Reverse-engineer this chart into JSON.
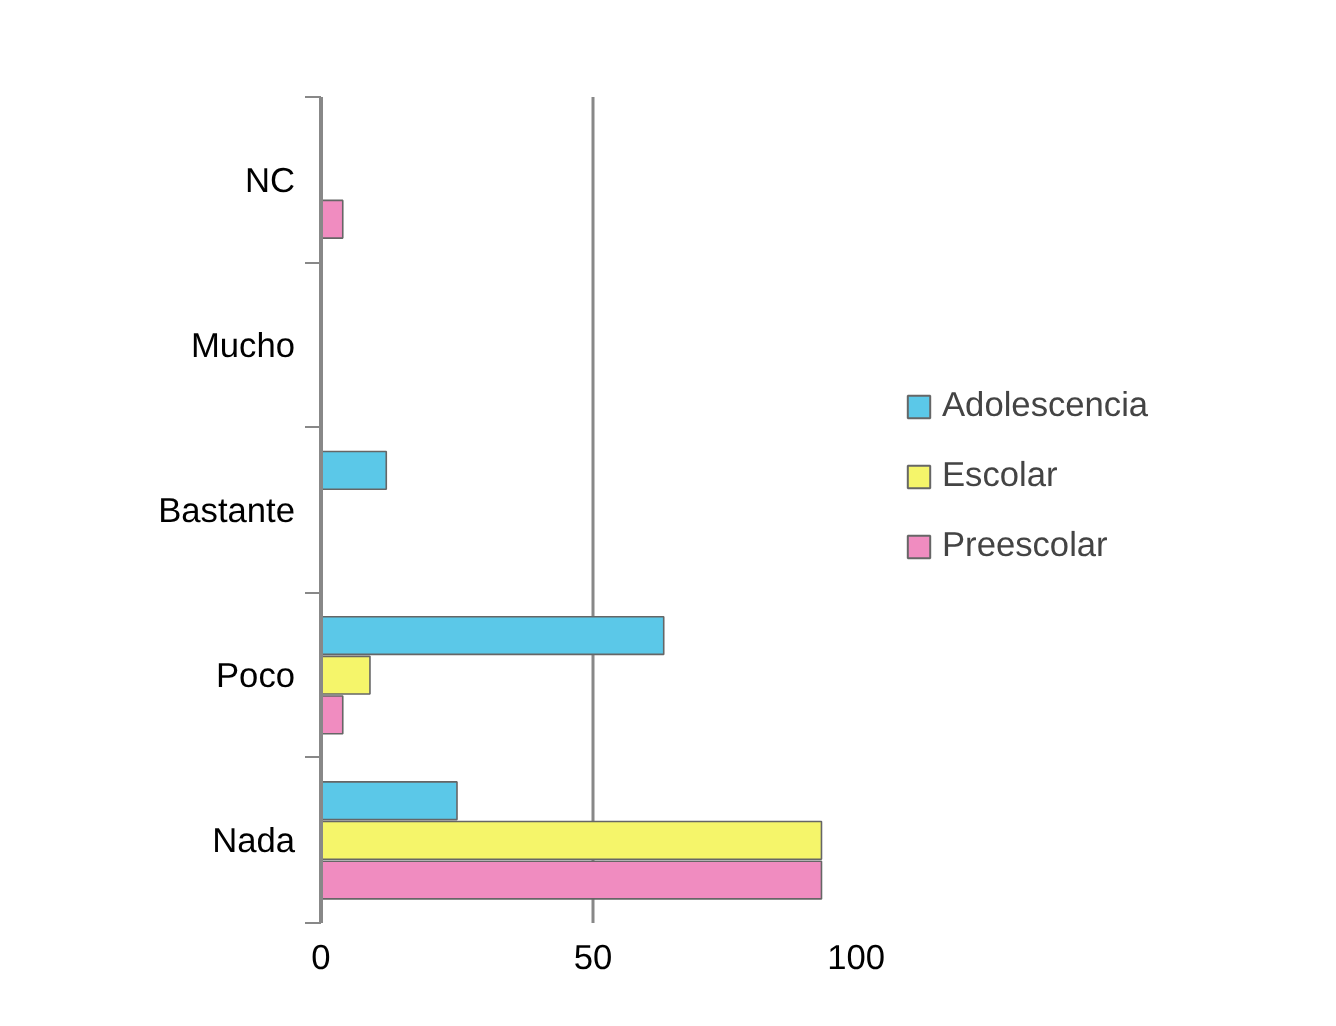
{
  "chart_data": {
    "type": "bar",
    "orientation": "horizontal",
    "categories": [
      "NC",
      "Mucho",
      "Bastante",
      "Poco",
      "Nada"
    ],
    "series": [
      {
        "name": "Adolescencia",
        "color": "#5bc8e8",
        "values": [
          null,
          null,
          12,
          63,
          25
        ]
      },
      {
        "name": "Escolar",
        "color": "#f5f56a",
        "values": [
          null,
          null,
          null,
          9,
          92
        ]
      },
      {
        "name": "Preescolar",
        "color": "#f08cc0",
        "values": [
          4,
          null,
          null,
          4,
          92
        ]
      }
    ],
    "xlim": [
      0,
      100
    ],
    "xticks": [
      0,
      50,
      100
    ],
    "grid": "x",
    "legend": "right"
  }
}
